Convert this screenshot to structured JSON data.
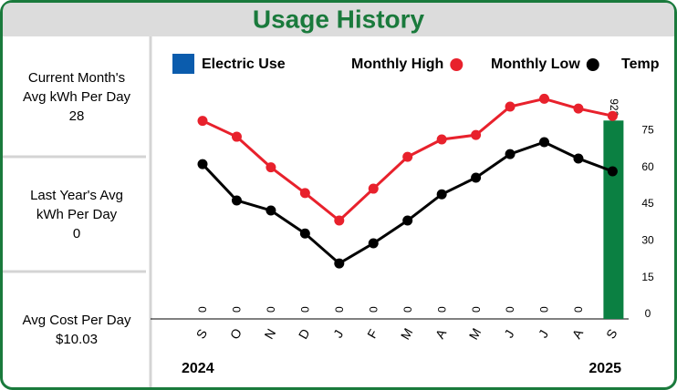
{
  "title": "Usage History",
  "panels": [
    {
      "label": "Current Month's Avg kWh Per Day",
      "value": "28"
    },
    {
      "label": "Last Year's Avg kWh Per Day",
      "value": "0"
    },
    {
      "label": "Avg Cost Per Day",
      "value": "$10.03"
    }
  ],
  "chart_data": {
    "type": "combo",
    "categories": [
      "S",
      "O",
      "N",
      "D",
      "J",
      "F",
      "M",
      "A",
      "M",
      "J",
      "J",
      "A",
      "S"
    ],
    "annotations": [
      "2024",
      "2025"
    ],
    "ylim": [
      0,
      1050
    ],
    "y2label": "Temp",
    "y2lim": [
      0,
      90
    ],
    "y2ticks": [
      0,
      15,
      30,
      45,
      60,
      75
    ],
    "series": [
      {
        "name": "Electric Use",
        "type": "bar",
        "axis": "y",
        "color": "#0b5cad",
        "values": [
          0,
          0,
          0,
          0,
          0,
          0,
          0,
          0,
          0,
          0,
          0,
          0,
          923
        ]
      },
      {
        "name": "Monthly High",
        "type": "line",
        "axis": "y2",
        "color": "#e8212c",
        "values": [
          79,
          72.5,
          60,
          49.5,
          38.3,
          51.3,
          64.3,
          71.4,
          73.2,
          84.8,
          88,
          84,
          81
        ]
      },
      {
        "name": "Monthly Low",
        "type": "line",
        "axis": "y2",
        "color": "#000000",
        "values": [
          61.3,
          46.5,
          42.4,
          33,
          20.8,
          29,
          38.3,
          49,
          55.8,
          65.4,
          70.3,
          63.6,
          58.4
        ]
      }
    ],
    "bar_fill": "#0b8042"
  }
}
